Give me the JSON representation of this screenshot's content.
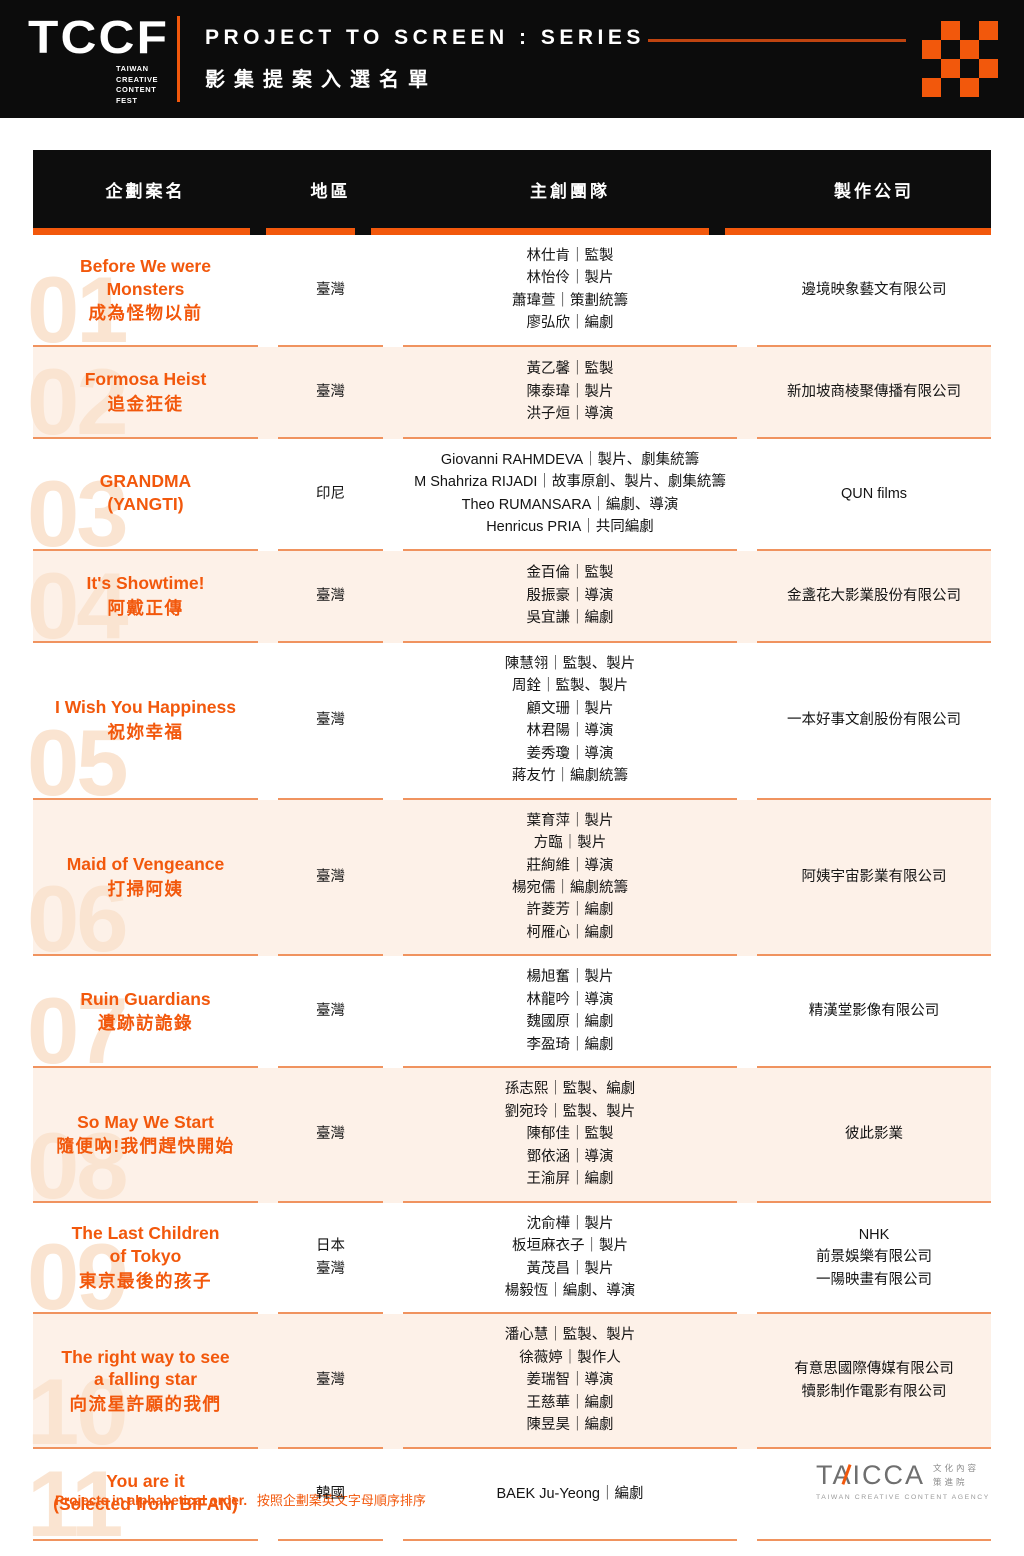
{
  "banner": {
    "logo": "TCCF",
    "logo_sub": "TAIWAN\nCREATIVE\nCONTENT\nFEST",
    "title": "PROJECT TO SCREEN : SERIES",
    "subtitle": "影集提案入選名單"
  },
  "colors": {
    "accent_orange": "#f2580c",
    "separator_orange": "#f0935f",
    "row_alt_bg": "#fdf1e8",
    "banner_bg": "#0c0c0c"
  },
  "table": {
    "columns": [
      "企劃案名",
      "地區",
      "主創團隊",
      "製作公司"
    ],
    "rows": [
      {
        "num": "01",
        "title_en": "Before We were\nMonsters",
        "title_zh": "成為怪物以前",
        "region": "臺灣",
        "team": "林仕肯｜監製\n林怡伶｜製片\n蕭瑋萱｜策劃統籌\n廖弘欣｜編劇",
        "company": "邊境映象藝文有限公司"
      },
      {
        "num": "02",
        "title_en": "Formosa Heist",
        "title_zh": "追金狂徒",
        "region": "臺灣",
        "team": "黃乙馨｜監製\n陳泰瑋｜製片\n洪子烜｜導演",
        "company": "新加坡商棱聚傳播有限公司"
      },
      {
        "num": "03",
        "title_en": "GRANDMA\n(YANGTI)",
        "title_zh": "",
        "region": "印尼",
        "team": "Giovanni RAHMDEVA｜製片、劇集統籌\nM Shahriza RIJADI｜故事原創、製片、劇集統籌\nTheo RUMANSARA｜編劇、導演\nHenricus PRIA｜共同編劇",
        "company": "QUN films"
      },
      {
        "num": "04",
        "title_en": "It's Showtime!",
        "title_zh": "阿戴正傳",
        "region": "臺灣",
        "team": "金百倫｜監製\n殷振豪｜導演\n吳宜謙｜編劇",
        "company": "金盞花大影業股份有限公司"
      },
      {
        "num": "05",
        "title_en": "I Wish You Happiness",
        "title_zh": "祝妳幸福",
        "region": "臺灣",
        "team": "陳慧翎｜監製、製片\n周銓｜監製、製片\n顧文珊｜製片\n林君陽｜導演\n姜秀瓊｜導演\n蔣友竹｜編劇統籌",
        "company": "一本好事文創股份有限公司"
      },
      {
        "num": "06",
        "title_en": "Maid of Vengeance",
        "title_zh": "打掃阿姨",
        "region": "臺灣",
        "team": "葉育萍｜製片\n方臨｜製片\n莊絢維｜導演\n楊宛儒｜編劇統籌\n許菱芳｜編劇\n柯雁心｜編劇",
        "company": "阿姨宇宙影業有限公司"
      },
      {
        "num": "07",
        "title_en": "Ruin Guardians",
        "title_zh": "遺跡訪詭錄",
        "region": "臺灣",
        "team": "楊旭奮｜製片\n林龍吟｜導演\n魏國原｜編劇\n李盈琦｜編劇",
        "company": "精漢堂影像有限公司"
      },
      {
        "num": "08",
        "title_en": "So May We Start",
        "title_zh": "隨便吶!我們趕快開始",
        "region": "臺灣",
        "team": "孫志熙｜監製、編劇\n劉宛玲｜監製、製片\n陳郁佳｜監製\n鄧依涵｜導演\n王渝屏｜編劇",
        "company": "彼此影業"
      },
      {
        "num": "09",
        "title_en": "The Last Children\nof Tokyo",
        "title_zh": "東京最後的孩子",
        "region": "日本\n臺灣",
        "team": "沈俞樺｜製片\n板垣麻衣子｜製片\n黃茂昌｜製片\n楊毅恆｜編劇、導演",
        "company": "NHK\n前景娛樂有限公司\n一陽映畫有限公司"
      },
      {
        "num": "10",
        "title_en": "The right way to see\na falling star",
        "title_zh": "向流星許願的我們",
        "region": "臺灣",
        "team": "潘心慧｜監製、製片\n徐薇婷｜製作人\n姜瑞智｜導演\n王慈華｜編劇\n陳昱昊｜編劇",
        "company": "有意思國際傳媒有限公司\n犢影制作電影有限公司"
      },
      {
        "num": "11",
        "title_en": "You are it\n(Selected from BIFAN)",
        "title_zh": "",
        "region": "韓國",
        "team": "BAEK Ju-Yeong｜編劇",
        "company": ""
      }
    ]
  },
  "footer": {
    "note_en": "Projects in alphabetical order.",
    "note_zh": "按照企劃案英文字母順序排序",
    "taicca": "TAICCA",
    "taicca_zh": "文化內容\n策進院",
    "taicca_sub": "TAIWAN CREATIVE CONTENT AGENCY"
  }
}
